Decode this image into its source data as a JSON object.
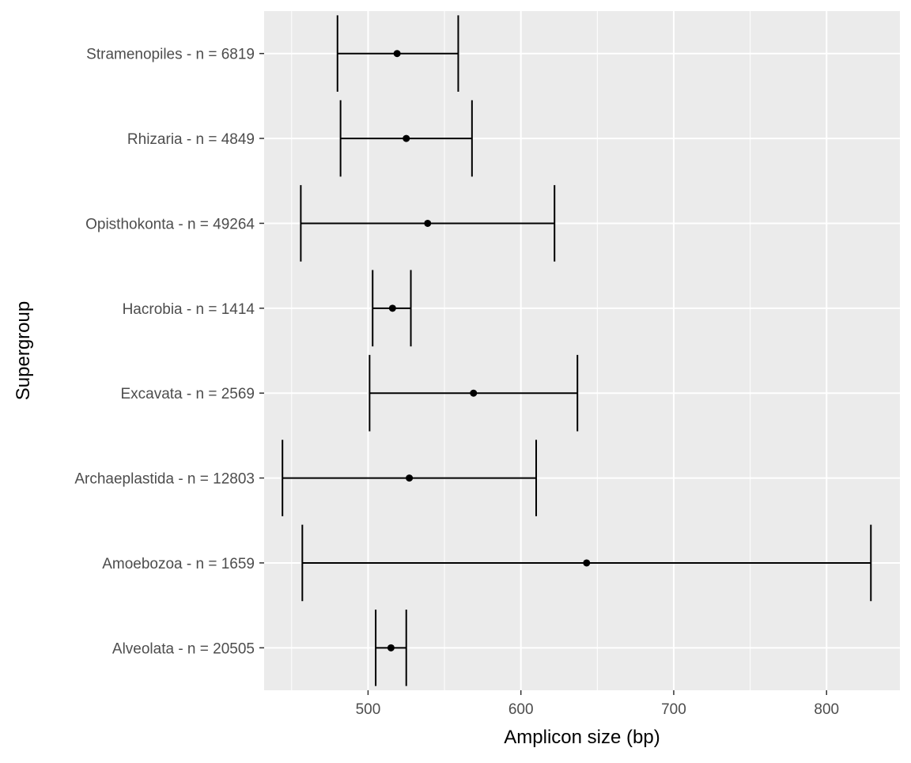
{
  "chart_data": {
    "type": "errorbar",
    "orientation": "horizontal",
    "xlabel": "Amplicon size (bp)",
    "ylabel": "Supergroup",
    "xlim": [
      432,
      848
    ],
    "x_ticks": [
      500,
      600,
      700,
      800
    ],
    "x_tick_labels": [
      "500",
      "600",
      "700",
      "800"
    ],
    "grid": true,
    "colors": {
      "panel_background": "#ebebeb",
      "grid_major": "#ffffff",
      "marks": "#000000",
      "tick_label": "#4d4d4d"
    },
    "categories": [
      "Stramenopiles - n = 6819",
      "Rhizaria - n = 4849",
      "Opisthokonta - n = 49264",
      "Hacrobia - n = 1414",
      "Excavata - n = 2569",
      "Archaeplastida - n = 12803",
      "Amoebozoa - n = 1659",
      "Alveolata - n = 20505"
    ],
    "points": [
      {
        "category": "Stramenopiles - n = 6819",
        "mean": 519,
        "low": 480,
        "high": 559
      },
      {
        "category": "Rhizaria - n = 4849",
        "mean": 525,
        "low": 482,
        "high": 568
      },
      {
        "category": "Opisthokonta - n = 49264",
        "mean": 539,
        "low": 456,
        "high": 622
      },
      {
        "category": "Hacrobia - n = 1414",
        "mean": 516,
        "low": 503,
        "high": 528
      },
      {
        "category": "Excavata - n = 2569",
        "mean": 569,
        "low": 501,
        "high": 637
      },
      {
        "category": "Archaeplastida - n = 12803",
        "mean": 527,
        "low": 444,
        "high": 610
      },
      {
        "category": "Amoebozoa - n = 1659",
        "mean": 643,
        "low": 457,
        "high": 829
      },
      {
        "category": "Alveolata - n = 20505",
        "mean": 515,
        "low": 505,
        "high": 525
      }
    ]
  }
}
